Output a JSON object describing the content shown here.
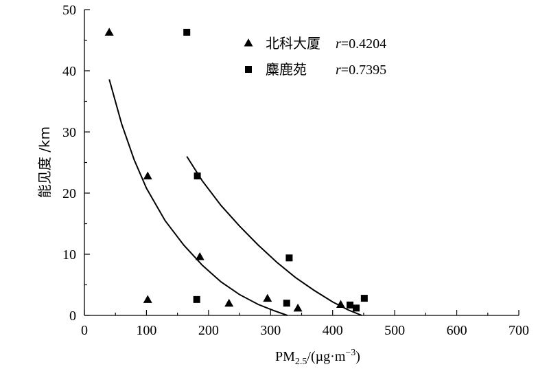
{
  "chart_data": {
    "type": "scatter",
    "title": "",
    "xlabel": {
      "prefix": "PM",
      "subscript": "2.5",
      "middle": "/(µg·m",
      "superscript": "−3",
      "suffix": ")"
    },
    "ylabel": "能见度 /km",
    "xlim": [
      0,
      700
    ],
    "ylim": [
      0,
      50
    ],
    "xticks": [
      0,
      100,
      200,
      300,
      400,
      500,
      600,
      700
    ],
    "yticks": [
      0,
      10,
      20,
      30,
      40,
      50
    ],
    "grid": false,
    "legend_position": "top-right",
    "series": [
      {
        "name": "北科大厦",
        "r_label": "r",
        "r_value": "=0.4204",
        "marker": "triangle",
        "points": [
          {
            "x": 40,
            "y": 46.3
          },
          {
            "x": 102,
            "y": 22.8
          },
          {
            "x": 102,
            "y": 2.6
          },
          {
            "x": 186,
            "y": 9.6
          },
          {
            "x": 233,
            "y": 2.0
          },
          {
            "x": 295,
            "y": 2.8
          },
          {
            "x": 344,
            "y": 1.2
          },
          {
            "x": 413,
            "y": 1.8
          }
        ],
        "fit_curve": [
          {
            "x": 40,
            "y": 38.6
          },
          {
            "x": 60,
            "y": 31.3
          },
          {
            "x": 80,
            "y": 25.5
          },
          {
            "x": 100,
            "y": 20.8
          },
          {
            "x": 130,
            "y": 15.5
          },
          {
            "x": 160,
            "y": 11.5
          },
          {
            "x": 190,
            "y": 8.2
          },
          {
            "x": 220,
            "y": 5.5
          },
          {
            "x": 250,
            "y": 3.4
          },
          {
            "x": 280,
            "y": 1.8
          },
          {
            "x": 305,
            "y": 0.8
          },
          {
            "x": 327,
            "y": 0.0
          }
        ]
      },
      {
        "name": "麋鹿苑",
        "r_label": "r",
        "r_value": "=0.7395",
        "marker": "square",
        "points": [
          {
            "x": 165,
            "y": 46.3
          },
          {
            "x": 182,
            "y": 22.8
          },
          {
            "x": 181,
            "y": 2.6
          },
          {
            "x": 330,
            "y": 9.4
          },
          {
            "x": 326,
            "y": 2.0
          },
          {
            "x": 428,
            "y": 1.7
          },
          {
            "x": 438,
            "y": 1.2
          },
          {
            "x": 451,
            "y": 2.8
          }
        ],
        "fit_curve": [
          {
            "x": 165,
            "y": 26.0
          },
          {
            "x": 190,
            "y": 22.0
          },
          {
            "x": 220,
            "y": 18.0
          },
          {
            "x": 250,
            "y": 14.6
          },
          {
            "x": 280,
            "y": 11.5
          },
          {
            "x": 310,
            "y": 8.7
          },
          {
            "x": 340,
            "y": 6.2
          },
          {
            "x": 370,
            "y": 4.1
          },
          {
            "x": 400,
            "y": 2.2
          },
          {
            "x": 425,
            "y": 0.9
          },
          {
            "x": 447,
            "y": 0.0
          }
        ]
      }
    ]
  }
}
